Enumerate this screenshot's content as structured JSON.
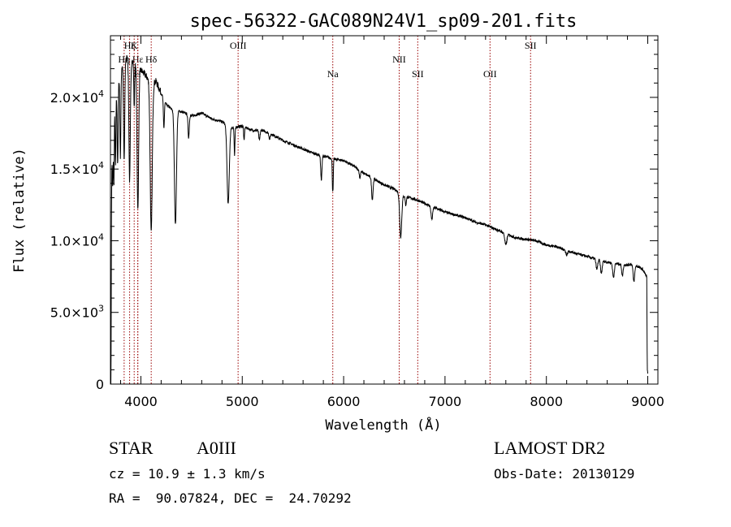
{
  "chart_data": {
    "type": "line",
    "title": "spec-56322-GAC089N24V1_sp09-201.fits",
    "xlabel": "Wavelength (Å)",
    "ylabel": "Flux (relative)",
    "xlim": [
      3700,
      9100
    ],
    "ylim": [
      0,
      24300
    ],
    "xticks": [
      {
        "value": 4000,
        "label": "4000"
      },
      {
        "value": 5000,
        "label": "5000"
      },
      {
        "value": 6000,
        "label": "6000"
      },
      {
        "value": 7000,
        "label": "7000"
      },
      {
        "value": 8000,
        "label": "8000"
      },
      {
        "value": 9000,
        "label": "9000"
      }
    ],
    "yticks": [
      {
        "value": 0,
        "mant": "0",
        "exp": ""
      },
      {
        "value": 5000,
        "mant": "5.0×10",
        "exp": "3"
      },
      {
        "value": 10000,
        "mant": "1.0×10",
        "exp": "4"
      },
      {
        "value": 15000,
        "mant": "1.5×10",
        "exp": "4"
      },
      {
        "value": 20000,
        "mant": "2.0×10",
        "exp": "4"
      }
    ],
    "line_color": "#000000",
    "annotation_color": "#990000",
    "lines": [
      {
        "label": "Hε",
        "x": 3970,
        "row": 1
      },
      {
        "label": "Hη",
        "x": 3835,
        "row": 1
      },
      {
        "label": "Hζ",
        "x": 3889,
        "row": 0
      },
      {
        "label": "Hδ",
        "x": 4102,
        "row": 1
      },
      {
        "label": "K",
        "x": 3934,
        "row": 0
      },
      {
        "label": "H",
        "x": 3969,
        "row": 2
      },
      {
        "label": "OIII",
        "x": 4959,
        "row": 0
      },
      {
        "label": "Na",
        "x": 5893,
        "row": 2
      },
      {
        "label": "NII",
        "x": 6548,
        "row": 1
      },
      {
        "label": "SII",
        "x": 6731,
        "row": 2
      },
      {
        "label": "OII",
        "x": 7444,
        "row": 2
      },
      {
        "label": "SII",
        "x": 7844,
        "row": 0
      }
    ],
    "continuum": [
      [
        3700,
        200
      ],
      [
        3710,
        16500
      ],
      [
        3740,
        19800
      ],
      [
        3800,
        22000
      ],
      [
        3850,
        22800
      ],
      [
        3900,
        22600
      ],
      [
        3950,
        22300
      ],
      [
        4000,
        21900
      ],
      [
        4050,
        21500
      ],
      [
        4100,
        21000
      ],
      [
        4150,
        21100
      ],
      [
        4200,
        20300
      ],
      [
        4250,
        19500
      ],
      [
        4300,
        19200
      ],
      [
        4400,
        19000
      ],
      [
        4500,
        18700
      ],
      [
        4600,
        18900
      ],
      [
        4700,
        18500
      ],
      [
        4800,
        18300
      ],
      [
        4900,
        17900
      ],
      [
        5000,
        18000
      ],
      [
        5100,
        17700
      ],
      [
        5200,
        17700
      ],
      [
        5300,
        17400
      ],
      [
        5400,
        17000
      ],
      [
        5500,
        16700
      ],
      [
        5600,
        16400
      ],
      [
        5700,
        16100
      ],
      [
        5800,
        15900
      ],
      [
        5900,
        15700
      ],
      [
        6000,
        15600
      ],
      [
        6100,
        15200
      ],
      [
        6200,
        14700
      ],
      [
        6300,
        14300
      ],
      [
        6400,
        13900
      ],
      [
        6500,
        13600
      ],
      [
        6600,
        13100
      ],
      [
        6700,
        12900
      ],
      [
        6800,
        12600
      ],
      [
        6900,
        12300
      ],
      [
        7000,
        12000
      ],
      [
        7100,
        11800
      ],
      [
        7200,
        11600
      ],
      [
        7300,
        11300
      ],
      [
        7400,
        11100
      ],
      [
        7500,
        10800
      ],
      [
        7600,
        10500
      ],
      [
        7700,
        10200
      ],
      [
        7800,
        10100
      ],
      [
        7900,
        10000
      ],
      [
        8000,
        9700
      ],
      [
        8100,
        9600
      ],
      [
        8200,
        9300
      ],
      [
        8300,
        9100
      ],
      [
        8400,
        8900
      ],
      [
        8500,
        8700
      ],
      [
        8600,
        8500
      ],
      [
        8700,
        8400
      ],
      [
        8800,
        8300
      ],
      [
        8850,
        8400
      ],
      [
        8900,
        8200
      ],
      [
        8950,
        8000
      ],
      [
        8990,
        7500
      ],
      [
        8995,
        1200
      ],
      [
        9000,
        1000
      ]
    ],
    "absorption": [
      {
        "x": 3705,
        "depth": 8000,
        "width": 5
      },
      {
        "x": 3722,
        "depth": 4000,
        "width": 4
      },
      {
        "x": 3734,
        "depth": 5000,
        "width": 4
      },
      {
        "x": 3750,
        "depth": 5000,
        "width": 4
      },
      {
        "x": 3771,
        "depth": 5500,
        "width": 5
      },
      {
        "x": 3798,
        "depth": 6000,
        "width": 5
      },
      {
        "x": 3835,
        "depth": 7000,
        "width": 6
      },
      {
        "x": 3889,
        "depth": 8500,
        "width": 7
      },
      {
        "x": 3934,
        "depth": 3000,
        "width": 4
      },
      {
        "x": 3970,
        "depth": 10000,
        "width": 8
      },
      {
        "x": 4102,
        "depth": 10500,
        "width": 10
      },
      {
        "x": 4227,
        "depth": 2000,
        "width": 5
      },
      {
        "x": 4341,
        "depth": 8000,
        "width": 10
      },
      {
        "x": 4471,
        "depth": 1600,
        "width": 6
      },
      {
        "x": 4861,
        "depth": 5500,
        "width": 11
      },
      {
        "x": 4924,
        "depth": 2000,
        "width": 4
      },
      {
        "x": 5018,
        "depth": 1000,
        "width": 4
      },
      {
        "x": 5169,
        "depth": 700,
        "width": 6
      },
      {
        "x": 5270,
        "depth": 400,
        "width": 6
      },
      {
        "x": 5780,
        "depth": 1700,
        "width": 6
      },
      {
        "x": 5890,
        "depth": 1800,
        "width": 3
      },
      {
        "x": 5896,
        "depth": 1800,
        "width": 3
      },
      {
        "x": 6160,
        "depth": 500,
        "width": 6
      },
      {
        "x": 6283,
        "depth": 1500,
        "width": 7
      },
      {
        "x": 6563,
        "depth": 3000,
        "width": 10
      },
      {
        "x": 6613,
        "depth": 600,
        "width": 5
      },
      {
        "x": 6870,
        "depth": 900,
        "width": 8
      },
      {
        "x": 7600,
        "depth": 800,
        "width": 10
      },
      {
        "x": 8200,
        "depth": 300,
        "width": 8
      },
      {
        "x": 8498,
        "depth": 700,
        "width": 8
      },
      {
        "x": 8542,
        "depth": 900,
        "width": 8
      },
      {
        "x": 8662,
        "depth": 1000,
        "width": 8
      },
      {
        "x": 8750,
        "depth": 800,
        "width": 7
      },
      {
        "x": 8863,
        "depth": 1200,
        "width": 8
      },
      {
        "x": 9015,
        "depth": 1000,
        "width": 10
      }
    ]
  },
  "info": {
    "object_class": "STAR",
    "subclass": "A0III",
    "survey": "LAMOST DR2",
    "redshift_line": "cz = 10.9 ± 1.3 km/s",
    "obs_date_line": "Obs-Date: 20130129",
    "coords_line": "RA =  90.07824, DEC =  24.70292"
  }
}
